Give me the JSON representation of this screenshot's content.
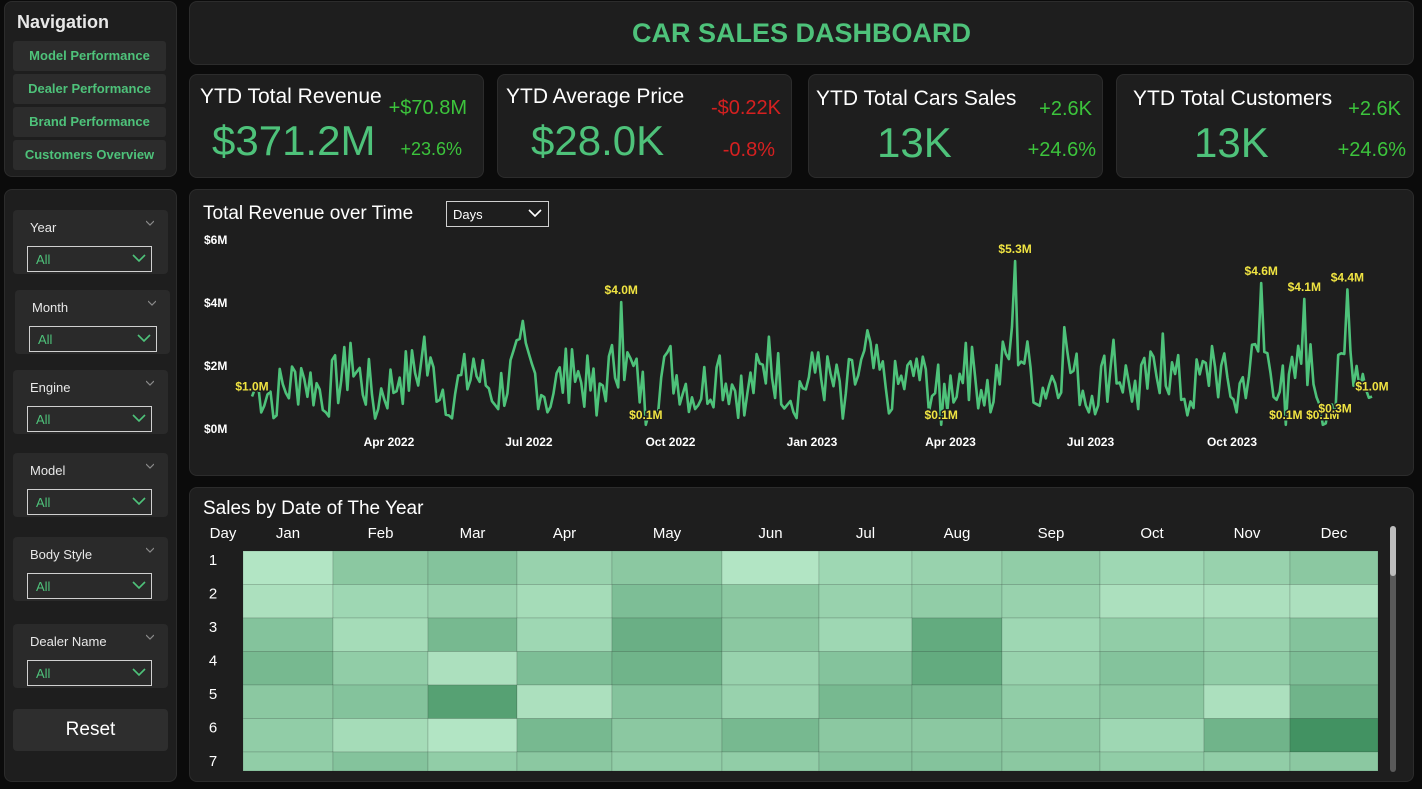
{
  "colors": {
    "accent": "#4ec27a",
    "positive": "#3cc43c",
    "negative": "#d52020",
    "label": "#f0e442"
  },
  "navigation": {
    "title": "Navigation",
    "items": [
      "Model Performance",
      "Dealer Performance",
      "Brand Performance",
      "Customers Overview"
    ]
  },
  "header": {
    "title": "CAR SALES DASHBOARD"
  },
  "kpis": [
    {
      "title": "YTD Total Revenue",
      "value": "$371.2M",
      "delta_abs": "+$70.8M",
      "delta_pct": "+23.6%",
      "trend": "positive"
    },
    {
      "title": "YTD Average Price",
      "value": "$28.0K",
      "delta_abs": "-$0.22K",
      "delta_pct": "-0.8%",
      "trend": "negative"
    },
    {
      "title": "YTD Total Cars Sales",
      "value": "13K",
      "delta_abs": "+2.6K",
      "delta_pct": "+24.6%",
      "trend": "positive"
    },
    {
      "title": "YTD Total Customers",
      "value": "13K",
      "delta_abs": "+2.6K",
      "delta_pct": "+24.6%",
      "trend": "positive"
    }
  ],
  "filters": [
    {
      "label": "Year",
      "value": "All"
    },
    {
      "label": "Month",
      "value": "All"
    },
    {
      "label": "Engine",
      "value": "All"
    },
    {
      "label": "Model",
      "value": "All"
    },
    {
      "label": "Body Style",
      "value": "All"
    },
    {
      "label": "Dealer Name",
      "value": "All"
    }
  ],
  "reset_label": "Reset",
  "revenue_chart": {
    "title": "Total Revenue over Time",
    "granularity": "Days"
  },
  "heatmap": {
    "title": "Sales by Date of The Year"
  },
  "chart_data": [
    {
      "type": "line",
      "title": "Total Revenue over Time",
      "x_range": [
        "2022-01-02",
        "2023-12-31"
      ],
      "x_ticks": [
        "Apr 2022",
        "Jul 2022",
        "Oct 2022",
        "Jan 2023",
        "Apr 2023",
        "Jul 2023",
        "Oct 2023"
      ],
      "y_ticks": [
        "$0M",
        "$2M",
        "$4M",
        "$6M"
      ],
      "ylim": [
        0,
        6
      ],
      "y_unit": "$M",
      "grid": false,
      "series": [
        {
          "points": [
            [
              "2022-01-02",
              1.0
            ],
            [
              "2022-01-18",
              0.4
            ],
            [
              "2022-02-03",
              1.9
            ],
            [
              "2022-02-19",
              0.5
            ],
            [
              "2022-03-07",
              2.7
            ],
            [
              "2022-03-23",
              0.3
            ],
            [
              "2022-04-08",
              1.6
            ],
            [
              "2022-04-24",
              2.9
            ],
            [
              "2022-05-10",
              0.4
            ],
            [
              "2022-05-26",
              2.2
            ],
            [
              "2022-06-11",
              0.6
            ],
            [
              "2022-06-27",
              3.4
            ],
            [
              "2022-07-13",
              0.5
            ],
            [
              "2022-07-29",
              2.5
            ],
            [
              "2022-08-14",
              0.4
            ],
            [
              "2022-08-30",
              4.0
            ],
            [
              "2022-09-15",
              0.1
            ],
            [
              "2022-10-01",
              2.6
            ],
            [
              "2022-10-17",
              0.6
            ],
            [
              "2022-11-02",
              2.3
            ],
            [
              "2022-11-18",
              0.4
            ],
            [
              "2022-12-04",
              2.9
            ],
            [
              "2022-12-20",
              0.5
            ],
            [
              "2023-01-05",
              2.4
            ],
            [
              "2023-01-21",
              0.3
            ],
            [
              "2023-02-06",
              3.1
            ],
            [
              "2023-02-22",
              0.6
            ],
            [
              "2023-03-10",
              2.2
            ],
            [
              "2023-03-26",
              0.1
            ],
            [
              "2023-04-11",
              2.7
            ],
            [
              "2023-04-27",
              0.5
            ],
            [
              "2023-05-13",
              5.3
            ],
            [
              "2023-05-29",
              0.7
            ],
            [
              "2023-06-14",
              3.2
            ],
            [
              "2023-06-30",
              0.5
            ],
            [
              "2023-07-16",
              2.8
            ],
            [
              "2023-08-01",
              0.6
            ],
            [
              "2023-08-17",
              3.0
            ],
            [
              "2023-09-02",
              0.4
            ],
            [
              "2023-09-18",
              2.6
            ],
            [
              "2023-10-04",
              0.5
            ],
            [
              "2023-10-20",
              4.6
            ],
            [
              "2023-11-05",
              0.1
            ],
            [
              "2023-11-17",
              4.1
            ],
            [
              "2023-11-29",
              0.1
            ],
            [
              "2023-12-07",
              0.3
            ],
            [
              "2023-12-15",
              4.4
            ],
            [
              "2023-12-31",
              1.0
            ]
          ]
        }
      ],
      "data_labels": [
        {
          "x": "2022-01-02",
          "y": 1.0,
          "text": "$1.0M"
        },
        {
          "x": "2022-08-30",
          "y": 4.0,
          "text": "$4.0M"
        },
        {
          "x": "2022-09-15",
          "y": 0.1,
          "text": "$0.1M"
        },
        {
          "x": "2023-03-26",
          "y": 0.1,
          "text": "$0.1M"
        },
        {
          "x": "2023-05-13",
          "y": 5.3,
          "text": "$5.3M"
        },
        {
          "x": "2023-10-20",
          "y": 4.6,
          "text": "$4.6M"
        },
        {
          "x": "2023-11-05",
          "y": 0.1,
          "text": "$0.1M"
        },
        {
          "x": "2023-11-17",
          "y": 4.1,
          "text": "$4.1M"
        },
        {
          "x": "2023-11-29",
          "y": 0.1,
          "text": "$0.1M"
        },
        {
          "x": "2023-12-07",
          "y": 0.3,
          "text": "$0.3M"
        },
        {
          "x": "2023-12-15",
          "y": 4.4,
          "text": "$4.4M"
        },
        {
          "x": "2023-12-31",
          "y": 1.0,
          "text": "$1.0M"
        }
      ]
    },
    {
      "type": "heatmap",
      "title": "Sales by Date of The Year",
      "row_header": "Day",
      "columns": [
        "Jan",
        "Feb",
        "Mar",
        "Apr",
        "May",
        "Jun",
        "Jul",
        "Aug",
        "Sep",
        "Oct",
        "Nov",
        "Dec"
      ],
      "rows": [
        "1",
        "2",
        "3",
        "4",
        "5",
        "6",
        "7"
      ],
      "intensity_scale": [
        0,
        1
      ],
      "values": [
        [
          0.15,
          0.45,
          0.5,
          0.35,
          0.45,
          0.15,
          0.3,
          0.35,
          0.4,
          0.3,
          0.35,
          0.45
        ],
        [
          0.2,
          0.3,
          0.35,
          0.25,
          0.55,
          0.45,
          0.35,
          0.4,
          0.35,
          0.2,
          0.2,
          0.2
        ],
        [
          0.5,
          0.25,
          0.6,
          0.3,
          0.7,
          0.45,
          0.3,
          0.75,
          0.3,
          0.4,
          0.35,
          0.5
        ],
        [
          0.6,
          0.4,
          0.2,
          0.55,
          0.65,
          0.35,
          0.5,
          0.75,
          0.35,
          0.5,
          0.4,
          0.55
        ],
        [
          0.45,
          0.5,
          0.85,
          0.2,
          0.5,
          0.35,
          0.6,
          0.6,
          0.4,
          0.45,
          0.2,
          0.65
        ],
        [
          0.4,
          0.25,
          0.15,
          0.6,
          0.45,
          0.6,
          0.45,
          0.45,
          0.45,
          0.3,
          0.65,
          1.0
        ],
        [
          0.4,
          0.5,
          0.4,
          0.45,
          0.4,
          0.4,
          0.5,
          0.5,
          0.45,
          0.4,
          0.4,
          0.45
        ]
      ]
    }
  ]
}
